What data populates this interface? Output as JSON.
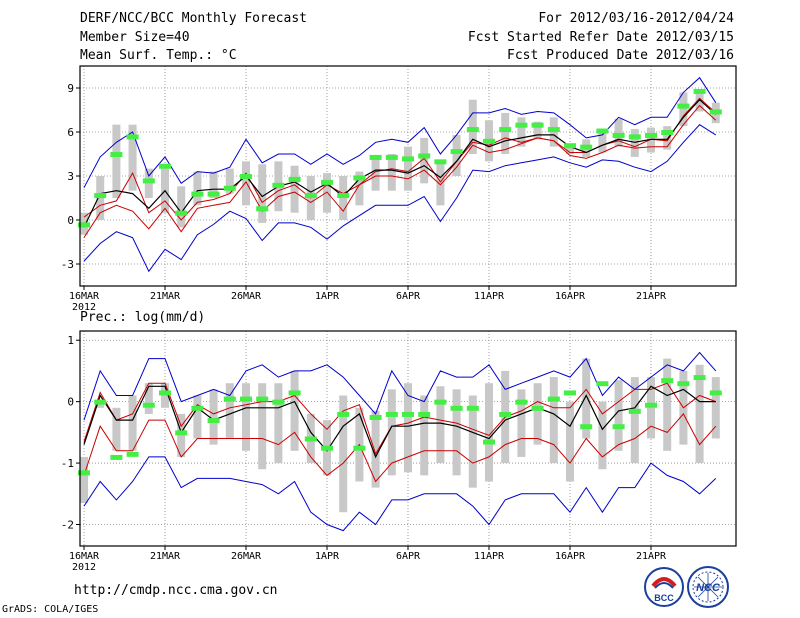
{
  "header": {
    "title": "DERF/NCC/BCC Monthly Forecast",
    "member_size": "Member Size=40",
    "variable": "Mean Surf. Temp.: °C",
    "period": "For 2012/03/16-2012/04/24",
    "fcst_started": "Fcst Started Refer Date 2012/03/15",
    "fcst_produced": "Fcst Produced Date 2012/03/16"
  },
  "footer": {
    "url": "http://cmdp.ncc.cma.gov.cn",
    "grads": "GrADS: COLA/IGES",
    "logo_left_text": "BCC",
    "logo_right_text": "NCC"
  },
  "colors": {
    "envelope": "#0000cc",
    "spread": "#cc0000",
    "mean": "#000000",
    "box": "#c8c8c8",
    "marker": "#44ee44"
  },
  "chart_data": [
    {
      "type": "box-ensemble-timeseries",
      "title": "Mean Surf. Temp.: °C",
      "xlabel": "",
      "ylabel": "°C",
      "ylim": [
        -4.5,
        10.5
      ],
      "yticks": [
        -3,
        0,
        3,
        6,
        9
      ],
      "grid": true,
      "x_tick_labels": [
        "16MAR",
        "21MAR",
        "26MAR",
        "1APR",
        "6APR",
        "11APR",
        "16APR",
        "21APR"
      ],
      "x_tick_index": [
        0,
        5,
        10,
        15,
        20,
        25,
        30,
        35
      ],
      "year_label": "2012",
      "days": 40,
      "max": [
        2.2,
        4.3,
        5.3,
        6.0,
        3.0,
        4.3,
        2.5,
        3.3,
        3.2,
        3.6,
        5.5,
        3.9,
        4.5,
        4.5,
        3.8,
        4.5,
        3.8,
        4.4,
        5.3,
        5.5,
        5.3,
        6.3,
        4.5,
        5.8,
        7.3,
        7.3,
        7.6,
        7.2,
        7.4,
        7.3,
        6.5,
        5.6,
        5.8,
        7.0,
        6.5,
        7.0,
        7.0,
        8.7,
        9.7,
        8.0
      ],
      "p85": [
        0.2,
        1.0,
        1.3,
        3.2,
        0.5,
        1.3,
        0.0,
        1.2,
        1.4,
        1.8,
        3.2,
        1.2,
        2.0,
        2.4,
        1.5,
        2.4,
        1.8,
        2.4,
        3.3,
        3.5,
        3.3,
        4.2,
        2.6,
        4.0,
        5.3,
        5.1,
        5.6,
        5.3,
        5.6,
        5.4,
        4.6,
        4.6,
        5.1,
        5.4,
        5.0,
        5.5,
        5.4,
        7.1,
        8.3,
        7.3
      ],
      "mean": [
        -0.5,
        1.8,
        2.0,
        1.8,
        0.8,
        2.0,
        0.5,
        2.0,
        2.1,
        2.1,
        3.0,
        1.6,
        2.3,
        2.6,
        1.9,
        2.5,
        1.6,
        2.8,
        3.4,
        3.4,
        3.2,
        3.7,
        2.9,
        4.0,
        5.5,
        5.0,
        5.4,
        5.6,
        5.8,
        5.8,
        5.0,
        4.6,
        5.1,
        5.5,
        5.3,
        5.5,
        5.5,
        7.0,
        8.2,
        7.2
      ],
      "p15": [
        -1.2,
        0.5,
        1.0,
        0.6,
        -0.6,
        0.8,
        -0.8,
        0.8,
        1.0,
        1.2,
        2.6,
        0.6,
        1.6,
        1.9,
        1.2,
        1.9,
        0.6,
        2.4,
        3.0,
        3.0,
        2.8,
        3.4,
        2.4,
        3.6,
        5.1,
        4.6,
        4.8,
        5.2,
        5.6,
        5.4,
        4.4,
        4.2,
        4.6,
        5.1,
        4.9,
        5.0,
        5.0,
        6.5,
        7.8,
        6.8
      ],
      "min": [
        -2.8,
        -1.6,
        -0.8,
        -1.2,
        -3.5,
        -2.0,
        -2.7,
        -1.0,
        -0.3,
        0.6,
        0.1,
        -1.4,
        -0.2,
        -0.2,
        -0.5,
        -1.3,
        -0.4,
        0.3,
        1.0,
        1.0,
        1.0,
        1.6,
        -0.1,
        1.5,
        3.4,
        3.3,
        3.7,
        3.9,
        4.1,
        4.3,
        3.9,
        3.6,
        4.1,
        4.0,
        3.6,
        3.3,
        4.0,
        5.3,
        6.5,
        5.8
      ],
      "box_low": [
        -1.0,
        0.0,
        1.5,
        2.0,
        1.5,
        0.5,
        -0.5,
        1.0,
        1.5,
        1.8,
        1.0,
        -0.2,
        0.6,
        0.5,
        0.0,
        0.5,
        0.0,
        1.0,
        2.0,
        2.0,
        2.0,
        2.5,
        1.0,
        3.0,
        4.5,
        4.0,
        4.5,
        5.0,
        5.5,
        5.0,
        4.5,
        4.3,
        4.6,
        5.0,
        4.3,
        4.6,
        4.8,
        6.4,
        7.4,
        6.6
      ],
      "box_high": [
        0.5,
        3.0,
        6.5,
        6.5,
        3.5,
        3.5,
        2.3,
        3.3,
        3.3,
        3.5,
        4.0,
        3.8,
        4.0,
        3.7,
        3.0,
        3.2,
        3.0,
        3.3,
        4.4,
        4.5,
        5.0,
        5.6,
        4.0,
        5.8,
        8.2,
        6.8,
        7.3,
        7.0,
        6.7,
        7.0,
        5.2,
        5.5,
        6.2,
        6.9,
        6.2,
        6.3,
        6.4,
        8.7,
        8.8,
        8.0
      ],
      "marker": [
        -0.3,
        1.7,
        4.5,
        5.7,
        2.7,
        3.7,
        0.5,
        1.8,
        1.8,
        2.2,
        3.0,
        0.8,
        2.4,
        2.8,
        1.7,
        2.6,
        1.7,
        2.9,
        4.3,
        4.3,
        4.2,
        4.4,
        4.0,
        4.7,
        6.2,
        5.4,
        6.2,
        6.5,
        6.5,
        6.2,
        5.1,
        5.0,
        6.1,
        5.8,
        5.7,
        5.8,
        6.0,
        7.8,
        8.8,
        7.4
      ]
    },
    {
      "type": "box-ensemble-timeseries",
      "title": "Prec.: log(mm/d)",
      "xlabel": "",
      "ylabel": "log(mm/d)",
      "ylim": [
        -2.35,
        1.15
      ],
      "yticks": [
        -2,
        -1,
        0,
        1
      ],
      "grid": true,
      "x_tick_labels": [
        "16MAR",
        "21MAR",
        "26MAR",
        "1APR",
        "6APR",
        "11APR",
        "16APR",
        "21APR"
      ],
      "x_tick_index": [
        0,
        5,
        10,
        15,
        20,
        25,
        30,
        35
      ],
      "year_label": "2012",
      "days": 40,
      "max": [
        -0.3,
        0.5,
        0.1,
        0.1,
        0.7,
        0.7,
        0.0,
        0.1,
        0.2,
        0.1,
        0.5,
        0.6,
        0.4,
        0.5,
        0.5,
        0.6,
        0.4,
        0.1,
        -0.2,
        0.5,
        0.1,
        0.0,
        0.5,
        0.4,
        0.4,
        0.6,
        0.2,
        0.3,
        0.4,
        0.5,
        0.4,
        0.7,
        0.1,
        0.4,
        0.2,
        0.4,
        0.6,
        0.5,
        0.8,
        0.5
      ],
      "p85": [
        -0.65,
        0.15,
        -0.3,
        -0.2,
        0.3,
        0.3,
        -0.4,
        -0.05,
        -0.2,
        -0.1,
        -0.05,
        0.0,
        0.0,
        0.1,
        -0.2,
        -0.45,
        -0.15,
        -0.05,
        -0.85,
        -0.4,
        -0.35,
        -0.25,
        -0.3,
        -0.35,
        -0.45,
        -0.55,
        -0.25,
        -0.15,
        0.0,
        -0.1,
        -0.1,
        0.2,
        -0.2,
        0.0,
        0.2,
        0.2,
        0.3,
        -0.1,
        0.1,
        0.0
      ],
      "mean": [
        -0.7,
        0.1,
        -0.3,
        -0.3,
        0.25,
        0.25,
        -0.5,
        -0.1,
        -0.3,
        -0.2,
        -0.1,
        -0.1,
        -0.1,
        0.0,
        -0.5,
        -0.8,
        -0.4,
        -0.2,
        -0.9,
        -0.4,
        -0.4,
        -0.35,
        -0.35,
        -0.4,
        -0.5,
        -0.6,
        -0.3,
        -0.2,
        -0.1,
        -0.2,
        -0.4,
        0.1,
        -0.45,
        -0.15,
        -0.1,
        0.25,
        0.1,
        0.2,
        0.0,
        0.0
      ],
      "p15": [
        -1.2,
        -0.4,
        -0.8,
        -0.8,
        -0.3,
        -0.3,
        -0.9,
        -0.6,
        -0.6,
        -0.6,
        -0.6,
        -0.6,
        -0.7,
        -0.5,
        -0.9,
        -1.2,
        -1.0,
        -0.7,
        -1.3,
        -1.0,
        -0.9,
        -0.8,
        -0.8,
        -0.8,
        -1.0,
        -0.9,
        -0.7,
        -0.6,
        -0.6,
        -0.7,
        -1.0,
        -0.6,
        -0.9,
        -0.7,
        -0.6,
        -0.4,
        -0.5,
        -0.2,
        -0.7,
        -0.4
      ],
      "min": [
        -1.7,
        -1.3,
        -1.6,
        -1.3,
        -0.9,
        -0.9,
        -1.4,
        -1.25,
        -1.25,
        -1.25,
        -1.3,
        -1.35,
        -1.5,
        -1.3,
        -1.8,
        -2.0,
        -2.1,
        -1.8,
        -2.0,
        -1.6,
        -1.6,
        -1.5,
        -1.5,
        -1.5,
        -1.7,
        -2.0,
        -1.6,
        -1.5,
        -1.5,
        -1.5,
        -1.8,
        -1.4,
        -1.8,
        -1.4,
        -1.4,
        -1.0,
        -1.2,
        -1.3,
        -1.5,
        -1.25
      ],
      "box_low": [
        -1.65,
        -0.1,
        -0.8,
        -0.8,
        -0.2,
        -0.1,
        -0.9,
        -0.6,
        -0.7,
        -0.6,
        -0.8,
        -1.1,
        -1.0,
        -0.8,
        -1.0,
        -1.2,
        -1.8,
        -1.3,
        -1.4,
        -1.2,
        -1.15,
        -1.2,
        -1.0,
        -1.2,
        -1.4,
        -1.3,
        -1.0,
        -0.9,
        -0.7,
        -1.0,
        -1.3,
        -0.6,
        -1.1,
        -0.8,
        -1.0,
        -0.6,
        -0.8,
        -0.7,
        -1.0,
        -0.6
      ],
      "box_high": [
        -0.9,
        0.0,
        -0.1,
        0.1,
        0.3,
        0.3,
        -0.2,
        0.1,
        0.2,
        0.3,
        0.3,
        0.3,
        0.3,
        0.5,
        -0.2,
        -0.3,
        0.1,
        -0.1,
        -0.15,
        0.2,
        0.3,
        0.1,
        0.25,
        0.2,
        0.1,
        0.3,
        0.5,
        0.2,
        0.3,
        0.4,
        0.0,
        0.7,
        0.0,
        0.35,
        0.4,
        0.4,
        0.7,
        0.5,
        0.6,
        0.4
      ],
      "marker": [
        -1.15,
        0.0,
        -0.9,
        -0.85,
        -0.05,
        0.15,
        -0.5,
        -0.1,
        -0.3,
        0.05,
        0.05,
        0.05,
        0.0,
        0.15,
        -0.6,
        -0.75,
        -0.2,
        -0.75,
        -0.25,
        -0.2,
        -0.2,
        -0.2,
        0.0,
        -0.1,
        -0.1,
        -0.65,
        -0.2,
        0.0,
        -0.1,
        0.05,
        0.15,
        -0.4,
        0.3,
        -0.4,
        -0.15,
        -0.05,
        0.35,
        0.3,
        0.4,
        0.15
      ]
    }
  ]
}
